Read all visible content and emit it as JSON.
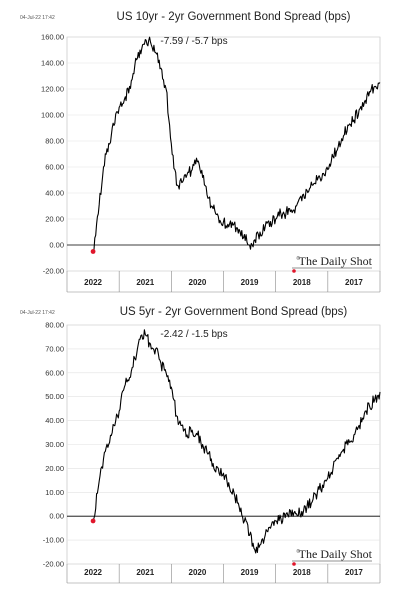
{
  "chart_data": [
    {
      "type": "line",
      "title": "US 10yr - 2yr Government Bond Spread (bps)",
      "timestamp": "04-Jul-22 17:42",
      "annotation": "-7.59 / -5.7 bps",
      "brand": "The Daily Shot",
      "brand_mark": "®",
      "x_axis_mirrored": true,
      "x_ticks": [
        "2017",
        "2018",
        "2019",
        "2020",
        "2021",
        "2022"
      ],
      "y_ticks": [
        "160.00",
        "140.00",
        "120.00",
        "100.00",
        "80.00",
        "60.00",
        "40.00",
        "20.00",
        "0.00",
        "-20.00"
      ],
      "ylim": [
        -20,
        160
      ],
      "grid": true,
      "marker_color": "#e0162b",
      "line_color": "#000000",
      "series": [
        {
          "x": [
            2017.0,
            2017.1,
            2017.2,
            2017.3,
            2017.4,
            2017.5,
            2017.6,
            2017.7,
            2017.8,
            2017.9,
            2018.0,
            2018.1,
            2018.2,
            2018.3,
            2018.4,
            2018.5,
            2018.6,
            2018.7,
            2018.8,
            2018.9,
            2019.0,
            2019.1,
            2019.2,
            2019.3,
            2019.4,
            2019.5,
            2019.6,
            2019.7,
            2019.8,
            2019.9,
            2020.0,
            2020.1,
            2020.2,
            2020.3,
            2020.4,
            2020.5,
            2020.6,
            2020.7,
            2020.8,
            2020.9,
            2021.0,
            2021.1,
            2021.2,
            2021.3,
            2021.4,
            2021.5,
            2021.6,
            2021.7,
            2021.8,
            2021.9,
            2022.0,
            2022.1,
            2022.2,
            2022.3,
            2022.4,
            2022.5
          ],
          "y": [
            125,
            122,
            118,
            110,
            104,
            96,
            92,
            84,
            76,
            68,
            58,
            55,
            50,
            46,
            42,
            34,
            30,
            27,
            25,
            24,
            20,
            18,
            14,
            10,
            4,
            0,
            8,
            12,
            16,
            14,
            18,
            22,
            28,
            36,
            52,
            64,
            58,
            54,
            48,
            46,
            78,
            120,
            136,
            148,
            156,
            158,
            150,
            138,
            122,
            112,
            106,
            92,
            78,
            60,
            24,
            -5
          ]
        }
      ]
    },
    {
      "type": "line",
      "title": "US 5yr - 2yr Government Bond Spread (bps)",
      "timestamp": "04-Jul-22 17:42",
      "annotation": "-2.42 / -1.5 bps",
      "brand": "The Daily Shot",
      "brand_mark": "®",
      "x_axis_mirrored": true,
      "x_ticks": [
        "2017",
        "2018",
        "2019",
        "2020",
        "2021",
        "2022"
      ],
      "y_ticks": [
        "80.00",
        "70.00",
        "60.00",
        "50.00",
        "40.00",
        "30.00",
        "20.00",
        "10.00",
        "0.00",
        "-10.00",
        "-20.00"
      ],
      "ylim": [
        -20,
        80
      ],
      "grid": true,
      "marker_color": "#e0162b",
      "line_color": "#000000",
      "series": [
        {
          "x": [
            2017.0,
            2017.1,
            2017.2,
            2017.3,
            2017.4,
            2017.5,
            2017.6,
            2017.7,
            2017.8,
            2017.9,
            2018.0,
            2018.1,
            2018.2,
            2018.3,
            2018.4,
            2018.5,
            2018.6,
            2018.7,
            2018.8,
            2018.9,
            2019.0,
            2019.1,
            2019.2,
            2019.3,
            2019.4,
            2019.5,
            2019.6,
            2019.7,
            2019.8,
            2019.9,
            2020.0,
            2020.1,
            2020.2,
            2020.3,
            2020.4,
            2020.5,
            2020.6,
            2020.7,
            2020.8,
            2020.9,
            2021.0,
            2021.1,
            2021.2,
            2021.3,
            2021.4,
            2021.5,
            2021.6,
            2021.7,
            2021.8,
            2021.9,
            2022.0,
            2022.1,
            2022.2,
            2022.3,
            2022.4,
            2022.5
          ],
          "y": [
            52,
            49,
            46,
            43,
            38,
            34,
            32,
            28,
            24,
            20,
            16,
            13,
            10,
            6,
            4,
            2,
            1,
            0,
            1,
            -1,
            -2,
            -5,
            -8,
            -12,
            -14,
            -8,
            -2,
            4,
            10,
            14,
            18,
            20,
            22,
            26,
            30,
            34,
            36,
            34,
            38,
            42,
            54,
            60,
            64,
            70,
            72,
            76,
            74,
            66,
            58,
            54,
            44,
            38,
            30,
            24,
            12,
            -2
          ]
        }
      ]
    }
  ]
}
